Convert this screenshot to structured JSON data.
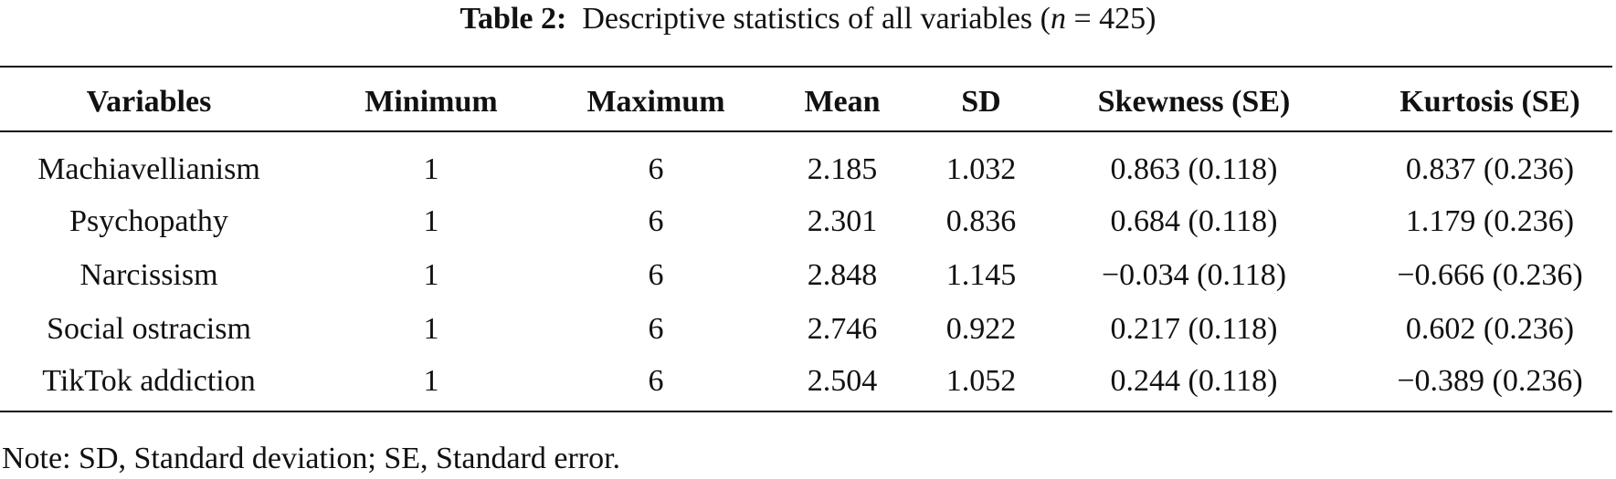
{
  "caption": {
    "label": "Table 2:",
    "text": "Descriptive statistics of all variables (",
    "variable": "n",
    "text_end": "= 425)"
  },
  "table": {
    "header": [
      "Variables",
      "Minimum",
      "Maximum",
      "Mean",
      "SD",
      "Skewness (SE)",
      "Kurtosis (SE)"
    ],
    "rows": [
      [
        "Machiavellianism",
        "1",
        "6",
        "2.185",
        "1.032",
        "0.863 (0.118)",
        "0.837 (0.236)"
      ],
      [
        "Psychopathy",
        "1",
        "6",
        "2.301",
        "0.836",
        "0.684 (0.118)",
        "1.179 (0.236)"
      ],
      [
        "Narcissism",
        "1",
        "6",
        "2.848",
        "1.145",
        "−0.034 (0.118)",
        "−0.666 (0.236)"
      ],
      [
        "Social ostracism",
        "1",
        "6",
        "2.746",
        "0.922",
        "0.217 (0.118)",
        "0.602 (0.236)"
      ],
      [
        "TikTok addiction",
        "1",
        "6",
        "2.504",
        "1.052",
        "0.244 (0.118)",
        "−0.389 (0.236)"
      ]
    ]
  },
  "note": "Note: SD, Standard deviation; SE, Standard error."
}
